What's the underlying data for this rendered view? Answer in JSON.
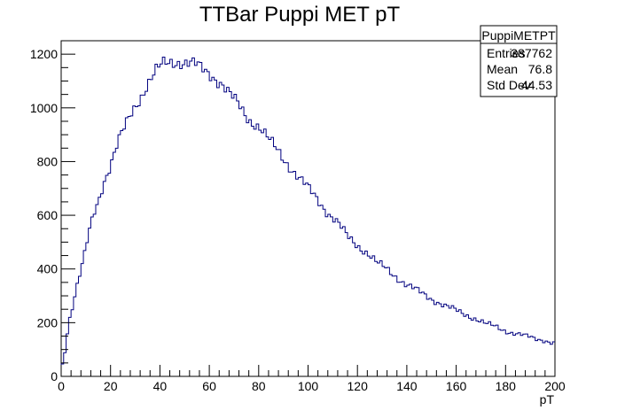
{
  "chart_data": {
    "type": "histogram",
    "title": "TTBar Puppi MET pT",
    "xlabel": "pT",
    "ylabel": "",
    "xlim": [
      0,
      200
    ],
    "ylim": [
      0,
      1250
    ],
    "x_ticks": [
      0,
      20,
      40,
      60,
      80,
      100,
      120,
      140,
      160,
      180,
      200
    ],
    "y_ticks": [
      0,
      200,
      400,
      600,
      800,
      1000,
      1200
    ],
    "bin_width": 1,
    "grid": false,
    "line_color": "#00007f",
    "stats_box": {
      "name": "PuppiMETPT",
      "rows": [
        {
          "label": "Entries",
          "value": "387762"
        },
        {
          "label": "Mean",
          "value": "76.8"
        },
        {
          "label": "Std Dev",
          "value": "44.53"
        }
      ]
    },
    "anchors": [
      [
        0,
        30
      ],
      [
        1,
        60
      ],
      [
        2,
        130
      ],
      [
        3,
        200
      ],
      [
        5,
        280
      ],
      [
        7,
        360
      ],
      [
        9,
        430
      ],
      [
        11,
        520
      ],
      [
        13,
        600
      ],
      [
        15,
        650
      ],
      [
        17,
        720
      ],
      [
        20,
        790
      ],
      [
        23,
        870
      ],
      [
        26,
        930
      ],
      [
        29,
        990
      ],
      [
        32,
        1040
      ],
      [
        35,
        1090
      ],
      [
        38,
        1130
      ],
      [
        41,
        1160
      ],
      [
        44,
        1170
      ],
      [
        47,
        1175
      ],
      [
        50,
        1170
      ],
      [
        54,
        1160
      ],
      [
        57,
        1145
      ],
      [
        61,
        1125
      ],
      [
        65,
        1090
      ],
      [
        68,
        1050
      ],
      [
        72,
        1010
      ],
      [
        76,
        960
      ],
      [
        80,
        930
      ],
      [
        84,
        880
      ],
      [
        88,
        840
      ],
      [
        92,
        790
      ],
      [
        96,
        740
      ],
      [
        100,
        700
      ],
      [
        104,
        660
      ],
      [
        108,
        610
      ],
      [
        112,
        570
      ],
      [
        116,
        520
      ],
      [
        120,
        490
      ],
      [
        124,
        460
      ],
      [
        128,
        420
      ],
      [
        132,
        400
      ],
      [
        136,
        370
      ],
      [
        140,
        340
      ],
      [
        144,
        320
      ],
      [
        148,
        300
      ],
      [
        152,
        280
      ],
      [
        156,
        260
      ],
      [
        160,
        245
      ],
      [
        164,
        230
      ],
      [
        168,
        215
      ],
      [
        172,
        195
      ],
      [
        176,
        185
      ],
      [
        180,
        170
      ],
      [
        184,
        160
      ],
      [
        188,
        150
      ],
      [
        192,
        140
      ],
      [
        196,
        135
      ],
      [
        199,
        125
      ]
    ]
  }
}
